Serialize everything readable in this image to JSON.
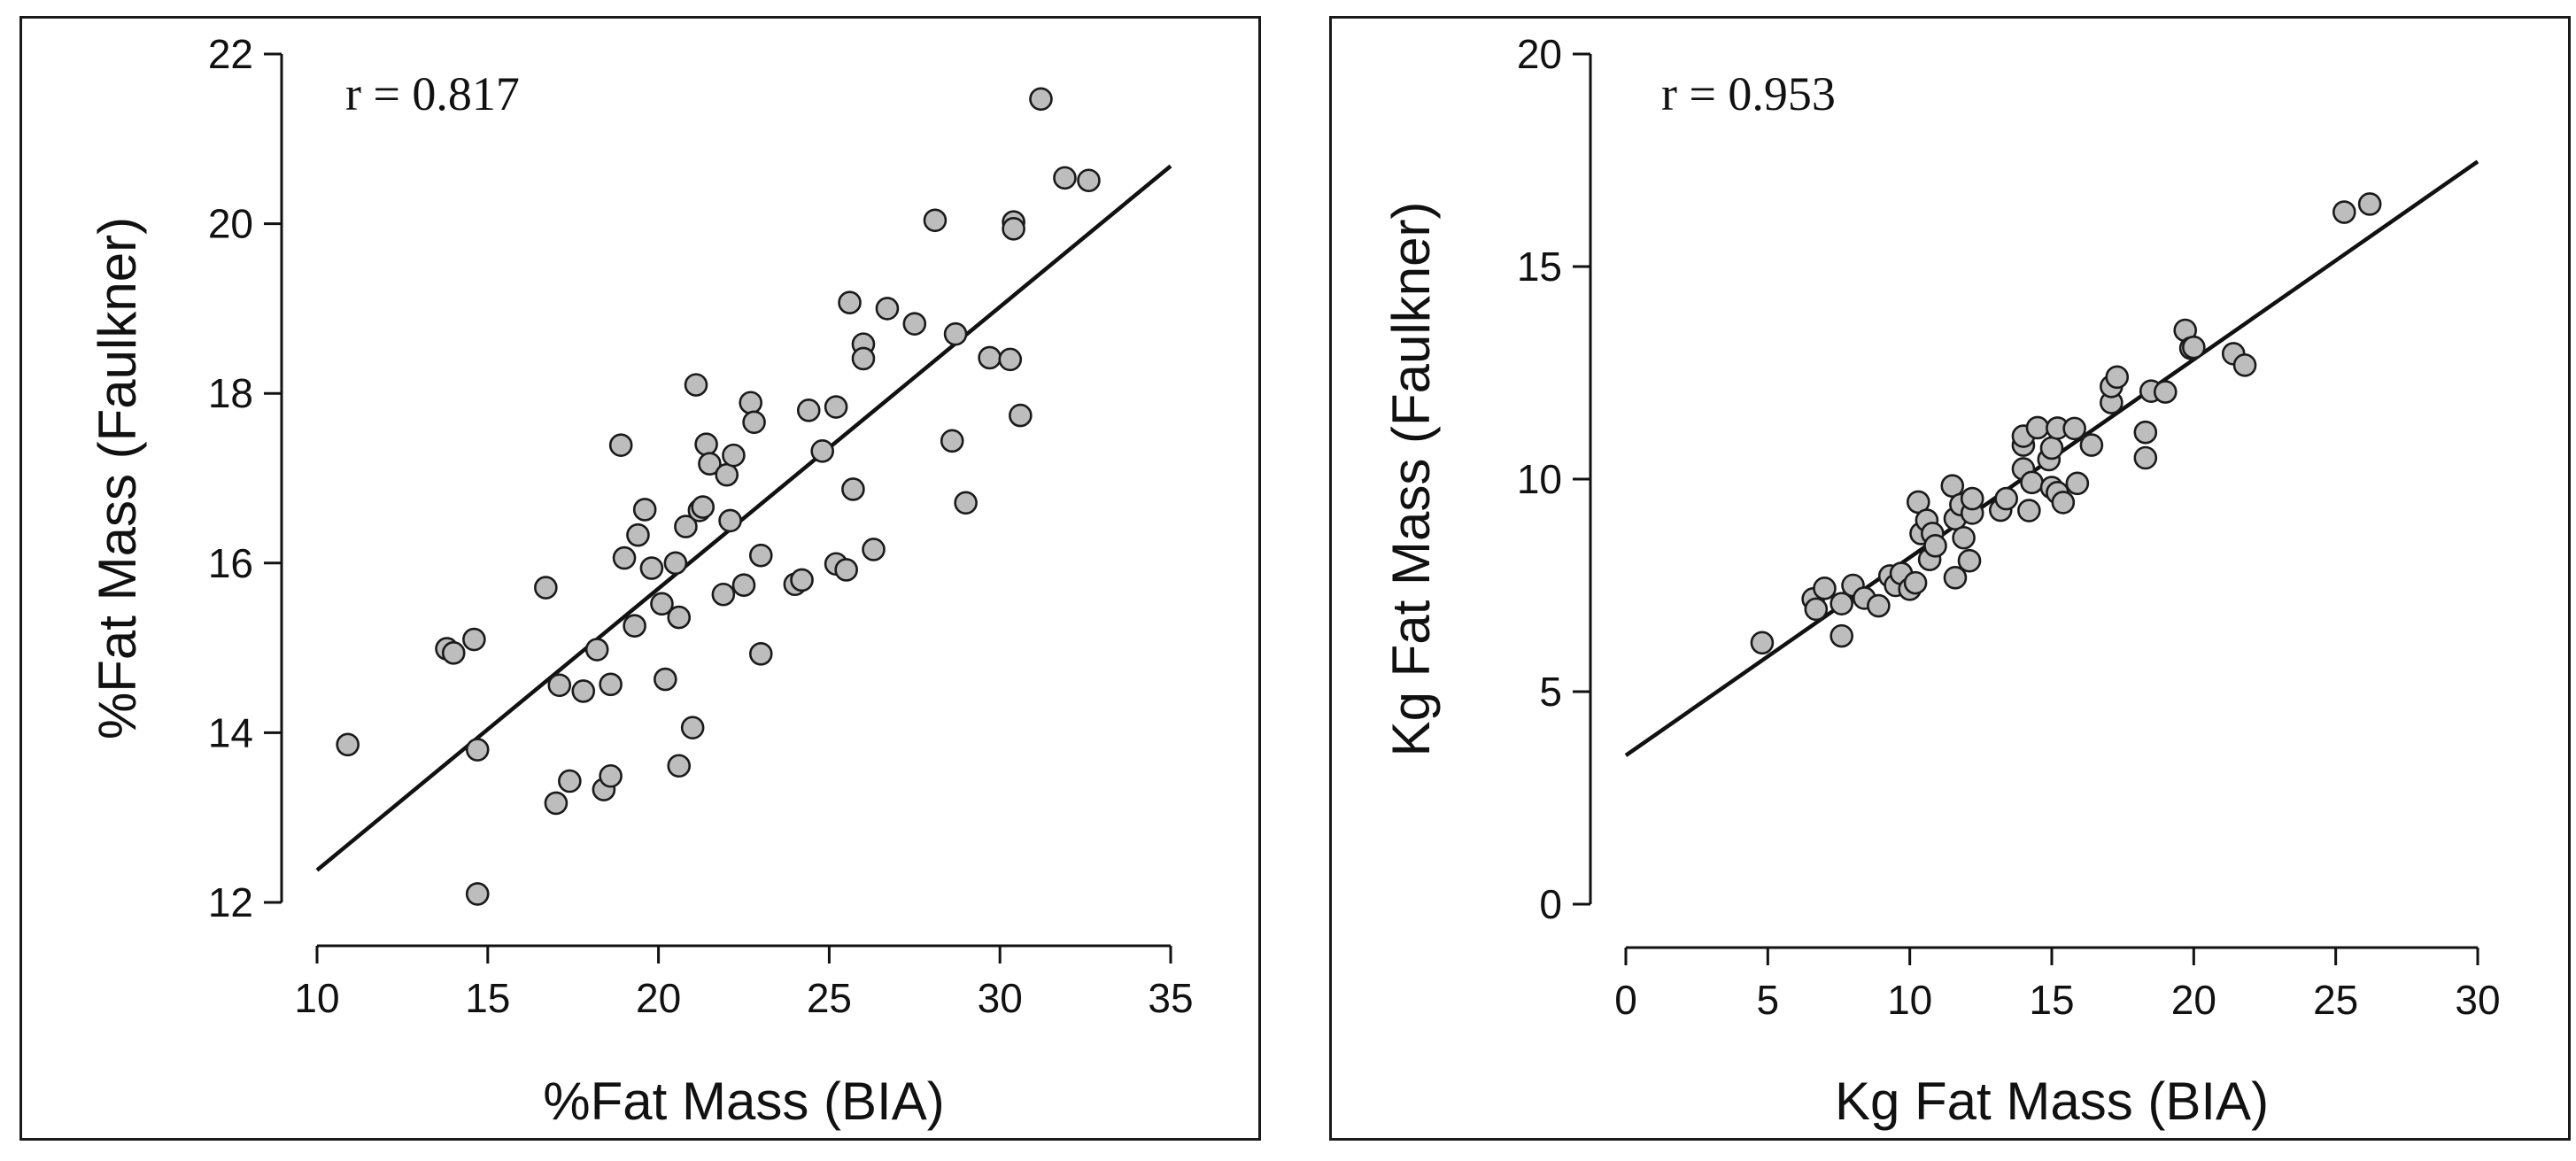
{
  "chart_data": [
    {
      "type": "scatter",
      "annotation": "r = 0.817",
      "xlabel": "%Fat Mass (BIA)",
      "ylabel": "%Fat Mass (Faulkner)",
      "xlim": [
        10,
        35
      ],
      "ylim": [
        12,
        22
      ],
      "xticks": [
        "10",
        "15",
        "20",
        "25",
        "30",
        "35"
      ],
      "yticks": [
        "12",
        "14",
        "16",
        "18",
        "20",
        "22"
      ],
      "fit_line": [
        [
          10,
          12.38
        ],
        [
          35,
          20.68
        ]
      ],
      "series": [
        {
          "name": "points",
          "points": [
            [
              10.9,
              13.86
            ],
            [
              13.8,
              14.99
            ],
            [
              14.0,
              14.94
            ],
            [
              14.6,
              15.1
            ],
            [
              14.7,
              13.8
            ],
            [
              14.7,
              12.1
            ],
            [
              16.7,
              15.71
            ],
            [
              17.0,
              13.17
            ],
            [
              17.1,
              14.56
            ],
            [
              17.4,
              13.43
            ],
            [
              17.8,
              14.49
            ],
            [
              18.2,
              14.98
            ],
            [
              18.4,
              13.33
            ],
            [
              18.6,
              13.49
            ],
            [
              18.6,
              14.57
            ],
            [
              18.9,
              17.39
            ],
            [
              19.0,
              16.06
            ],
            [
              19.3,
              15.26
            ],
            [
              19.4,
              16.33
            ],
            [
              19.6,
              16.63
            ],
            [
              19.8,
              15.94
            ],
            [
              20.1,
              15.52
            ],
            [
              20.2,
              14.63
            ],
            [
              20.5,
              16.0
            ],
            [
              20.6,
              15.36
            ],
            [
              20.6,
              13.61
            ],
            [
              20.8,
              16.43
            ],
            [
              21.0,
              14.06
            ],
            [
              21.1,
              18.1
            ],
            [
              21.2,
              16.62
            ],
            [
              21.3,
              16.66
            ],
            [
              21.4,
              17.4
            ],
            [
              21.5,
              17.17
            ],
            [
              21.9,
              15.63
            ],
            [
              22.0,
              17.04
            ],
            [
              22.1,
              16.5
            ],
            [
              22.2,
              17.27
            ],
            [
              22.5,
              15.74
            ],
            [
              22.7,
              17.89
            ],
            [
              22.8,
              17.66
            ],
            [
              23.0,
              16.09
            ],
            [
              23.0,
              14.93
            ],
            [
              24.0,
              15.75
            ],
            [
              24.2,
              15.8
            ],
            [
              24.4,
              17.8
            ],
            [
              24.8,
              17.32
            ],
            [
              25.2,
              15.99
            ],
            [
              25.2,
              17.84
            ],
            [
              25.5,
              15.92
            ],
            [
              25.6,
              19.07
            ],
            [
              25.7,
              16.87
            ],
            [
              26.0,
              18.58
            ],
            [
              26.0,
              18.41
            ],
            [
              26.3,
              16.16
            ],
            [
              26.7,
              19.0
            ],
            [
              27.5,
              18.82
            ],
            [
              28.1,
              20.04
            ],
            [
              28.6,
              17.44
            ],
            [
              28.7,
              18.7
            ],
            [
              29.0,
              16.71
            ],
            [
              29.7,
              18.42
            ],
            [
              30.3,
              18.4
            ],
            [
              30.4,
              20.02
            ],
            [
              30.4,
              19.94
            ],
            [
              30.6,
              17.74
            ],
            [
              31.2,
              21.47
            ],
            [
              31.9,
              20.54
            ],
            [
              32.6,
              20.51
            ]
          ]
        }
      ]
    },
    {
      "type": "scatter",
      "annotation": "r = 0.953",
      "xlabel": "Kg Fat Mass (BIA)",
      "ylabel": "Kg Fat Mass (Faulkner)",
      "xlim": [
        0,
        30
      ],
      "ylim": [
        0,
        20
      ],
      "xticks": [
        "0",
        "5",
        "10",
        "15",
        "20",
        "25",
        "30"
      ],
      "yticks": [
        "0",
        "5",
        "10",
        "15",
        "20"
      ],
      "fit_line": [
        [
          0,
          3.5
        ],
        [
          30,
          17.47
        ]
      ],
      "series": [
        {
          "name": "points",
          "points": [
            [
              4.8,
              6.15
            ],
            [
              6.6,
              7.18
            ],
            [
              6.7,
              6.94
            ],
            [
              7.0,
              7.43
            ],
            [
              7.6,
              7.07
            ],
            [
              7.6,
              6.31
            ],
            [
              8.0,
              7.5
            ],
            [
              8.4,
              7.2
            ],
            [
              8.9,
              7.02
            ],
            [
              9.3,
              7.72
            ],
            [
              9.5,
              7.5
            ],
            [
              9.7,
              7.78
            ],
            [
              10.0,
              7.41
            ],
            [
              10.2,
              7.56
            ],
            [
              10.3,
              9.46
            ],
            [
              10.4,
              8.72
            ],
            [
              10.6,
              9.03
            ],
            [
              10.7,
              8.11
            ],
            [
              10.8,
              8.72
            ],
            [
              10.9,
              8.43
            ],
            [
              11.5,
              9.84
            ],
            [
              11.6,
              7.68
            ],
            [
              11.6,
              9.07
            ],
            [
              11.8,
              9.4
            ],
            [
              11.9,
              8.62
            ],
            [
              12.1,
              8.08
            ],
            [
              12.2,
              9.2
            ],
            [
              12.2,
              9.54
            ],
            [
              13.2,
              9.27
            ],
            [
              13.4,
              9.54
            ],
            [
              14.0,
              10.24
            ],
            [
              14.0,
              10.8
            ],
            [
              14.0,
              11.01
            ],
            [
              14.2,
              9.26
            ],
            [
              14.3,
              9.92
            ],
            [
              14.5,
              11.21
            ],
            [
              14.9,
              10.46
            ],
            [
              15.0,
              9.8
            ],
            [
              15.0,
              10.73
            ],
            [
              15.2,
              11.2
            ],
            [
              15.2,
              9.68
            ],
            [
              15.4,
              9.45
            ],
            [
              15.8,
              11.19
            ],
            [
              15.9,
              9.9
            ],
            [
              16.4,
              10.8
            ],
            [
              17.1,
              11.8
            ],
            [
              17.1,
              12.18
            ],
            [
              17.3,
              12.4
            ],
            [
              18.3,
              11.1
            ],
            [
              18.3,
              10.5
            ],
            [
              18.5,
              12.07
            ],
            [
              19.0,
              12.05
            ],
            [
              19.7,
              13.5
            ],
            [
              19.9,
              13.08
            ],
            [
              20.0,
              13.1
            ],
            [
              21.4,
              12.95
            ],
            [
              21.8,
              12.68
            ],
            [
              25.3,
              16.28
            ],
            [
              26.2,
              16.47
            ]
          ]
        }
      ]
    }
  ]
}
